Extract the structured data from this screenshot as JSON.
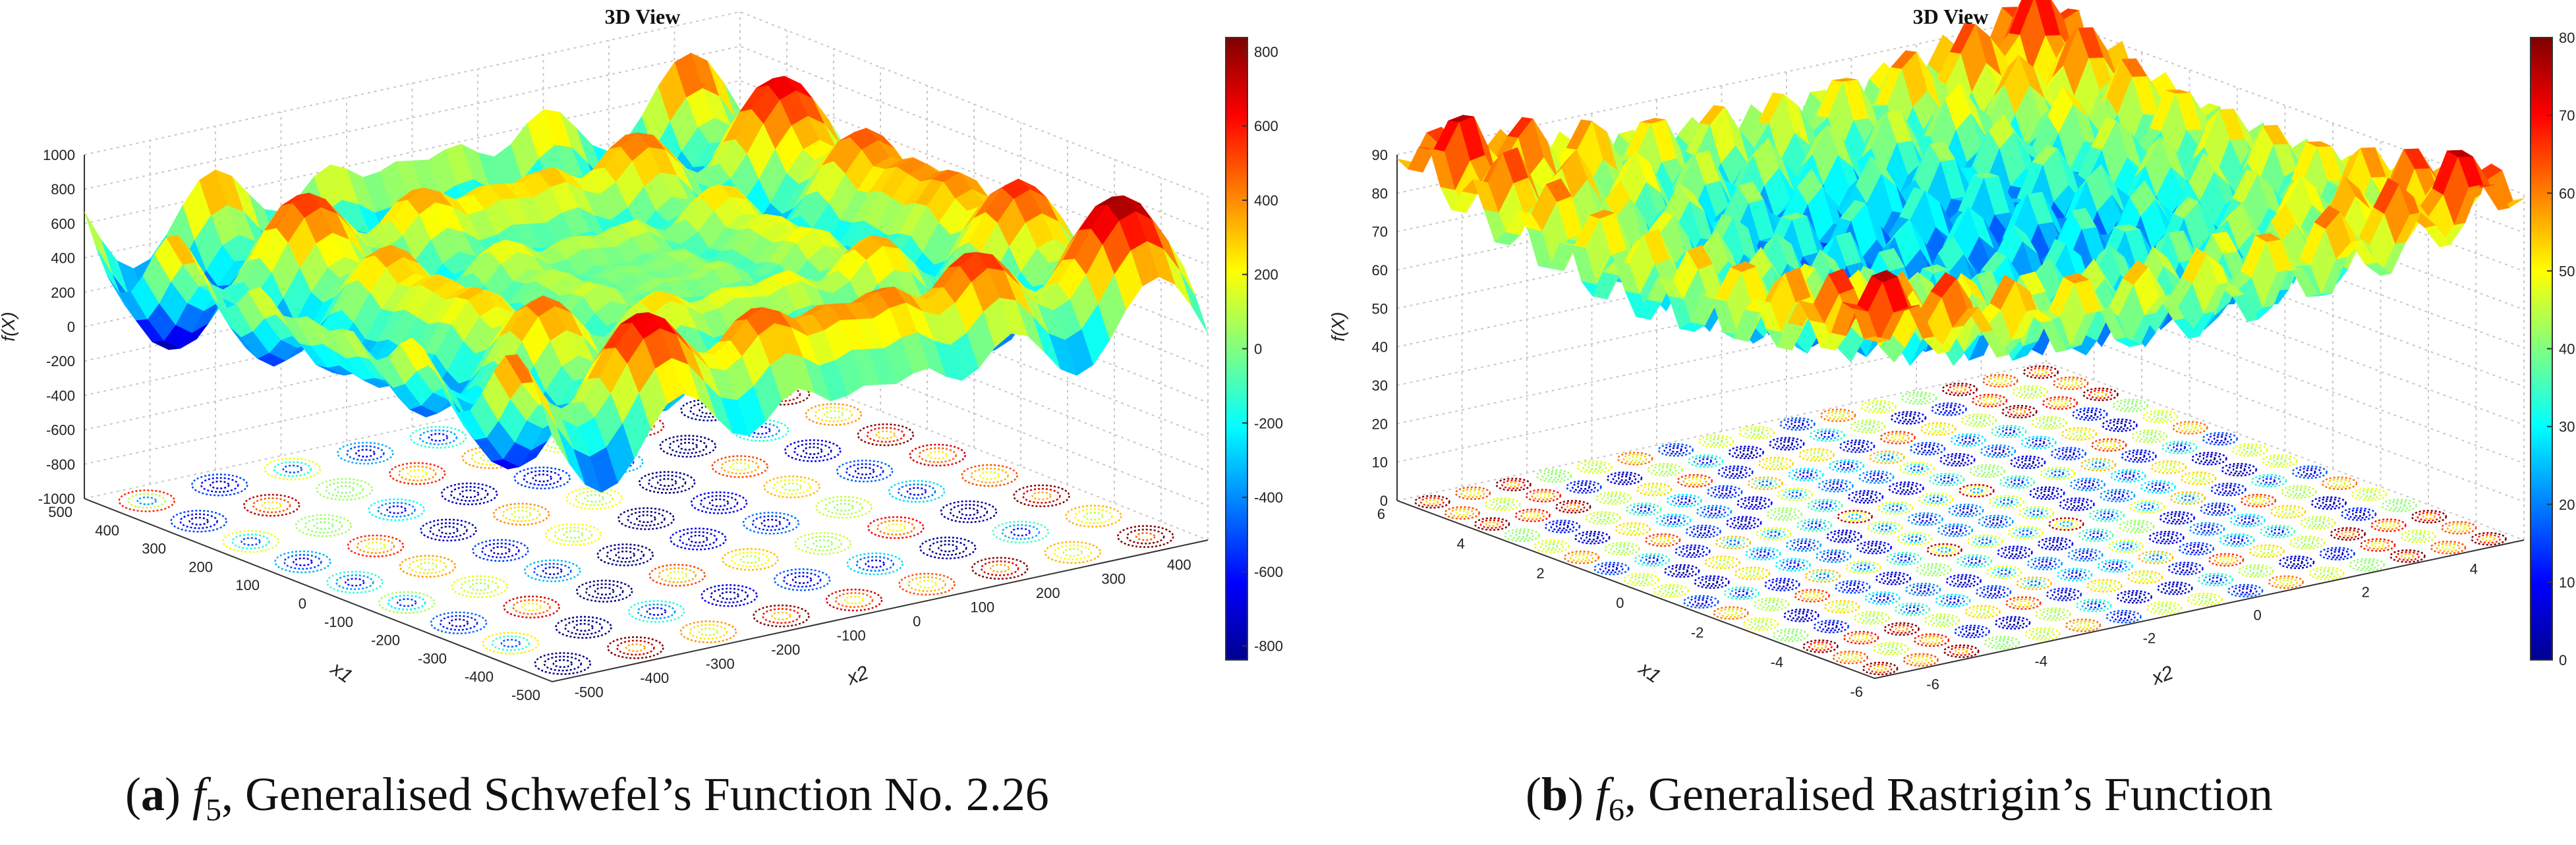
{
  "chart_data": [
    {
      "type": "surface3d",
      "title": "3D View",
      "zlabel": "f(X)",
      "xlabel": "x1",
      "ylabel": "x2",
      "zlim": [
        -1000,
        1000
      ],
      "z_ticks": [
        "1000",
        "800",
        "600",
        "400",
        "200",
        "0",
        "-200",
        "-400",
        "-600",
        "-800",
        "-1000"
      ],
      "x1_ticks": [
        "500",
        "400",
        "300",
        "200",
        "100",
        "0",
        "-100",
        "-200",
        "-300",
        "-400",
        "-500"
      ],
      "x2_ticks": [
        "-500",
        "-400",
        "-300",
        "-200",
        "-100",
        "0",
        "100",
        "200",
        "300",
        "400"
      ],
      "colorbar": {
        "min": -838,
        "max": 838,
        "ticks": [
          "800",
          "600",
          "400",
          "200",
          "0",
          "-200",
          "-400",
          "-600",
          "-800"
        ]
      },
      "caption": {
        "letter": "a",
        "func": "f",
        "sub": "5",
        "text": ", Generalised Schwefel’s Function No. 2.26"
      }
    },
    {
      "type": "surface3d",
      "title": "3D View",
      "zlabel": "f(X)",
      "xlabel": "x1",
      "ylabel": "x2",
      "zlim": [
        0,
        90
      ],
      "z_ticks": [
        "90",
        "80",
        "70",
        "60",
        "50",
        "40",
        "30",
        "20",
        "10",
        "0"
      ],
      "x1_ticks": [
        "6",
        "4",
        "2",
        "0",
        "-2",
        "-4",
        "-6"
      ],
      "x2_ticks": [
        "-6",
        "-4",
        "-2",
        "0",
        "2",
        "4"
      ],
      "colorbar": {
        "min": 0,
        "max": 80,
        "ticks": [
          "80",
          "70",
          "60",
          "50",
          "40",
          "30",
          "20",
          "10",
          "0"
        ]
      },
      "caption": {
        "letter": "b",
        "func": "f",
        "sub": "6",
        "text": ", Generalised Rastrigin’s Function"
      }
    }
  ]
}
